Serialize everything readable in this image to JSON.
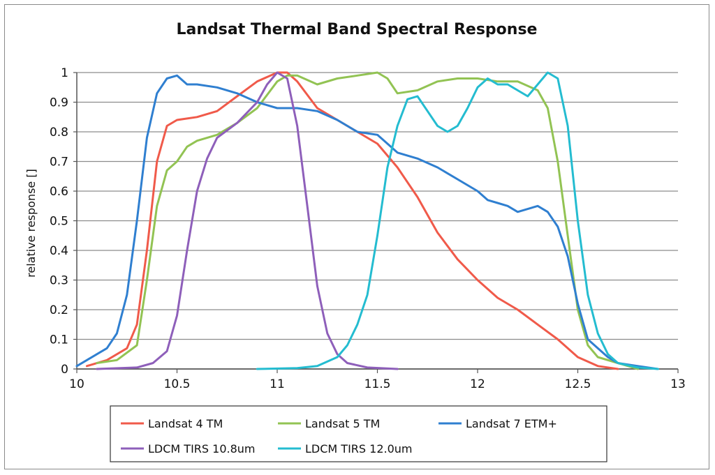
{
  "chart_data": {
    "type": "line",
    "title": "Landsat Thermal Band Spectral Response",
    "xlabel": "",
    "ylabel": "relative response []",
    "xlim": [
      10,
      13
    ],
    "ylim": [
      0,
      1
    ],
    "x_ticks": [
      10,
      10.5,
      11,
      11.5,
      12,
      12.5,
      13
    ],
    "y_ticks": [
      0,
      0.1,
      0.2,
      0.3,
      0.4,
      0.5,
      0.6,
      0.7,
      0.8,
      0.9,
      1
    ],
    "x_tick_labels": [
      "10",
      "10.5",
      "11",
      "11.5",
      "12",
      "12.5",
      "13"
    ],
    "y_tick_labels": [
      "0",
      "0.1",
      "0.2",
      "0.3",
      "0.4",
      "0.5",
      "0.6",
      "0.7",
      "0.8",
      "0.9",
      "1"
    ],
    "grid": "horizontal",
    "legend_position": "bottom",
    "series": [
      {
        "name": "Landsat 4 TM",
        "color": "#f05a4a",
        "points": [
          [
            10.05,
            0.01
          ],
          [
            10.15,
            0.03
          ],
          [
            10.25,
            0.07
          ],
          [
            10.3,
            0.15
          ],
          [
            10.35,
            0.4
          ],
          [
            10.4,
            0.7
          ],
          [
            10.45,
            0.82
          ],
          [
            10.5,
            0.84
          ],
          [
            10.6,
            0.85
          ],
          [
            10.7,
            0.87
          ],
          [
            10.8,
            0.92
          ],
          [
            10.9,
            0.97
          ],
          [
            11.0,
            1.0
          ],
          [
            11.05,
            1.0
          ],
          [
            11.1,
            0.97
          ],
          [
            11.2,
            0.88
          ],
          [
            11.3,
            0.84
          ],
          [
            11.4,
            0.8
          ],
          [
            11.5,
            0.76
          ],
          [
            11.6,
            0.68
          ],
          [
            11.7,
            0.58
          ],
          [
            11.8,
            0.46
          ],
          [
            11.9,
            0.37
          ],
          [
            12.0,
            0.3
          ],
          [
            12.1,
            0.24
          ],
          [
            12.2,
            0.2
          ],
          [
            12.3,
            0.15
          ],
          [
            12.4,
            0.1
          ],
          [
            12.5,
            0.04
          ],
          [
            12.6,
            0.01
          ],
          [
            12.7,
            0.0
          ]
        ]
      },
      {
        "name": "Landsat 5 TM",
        "color": "#92c353",
        "points": [
          [
            10.1,
            0.02
          ],
          [
            10.2,
            0.03
          ],
          [
            10.3,
            0.08
          ],
          [
            10.35,
            0.3
          ],
          [
            10.4,
            0.55
          ],
          [
            10.45,
            0.67
          ],
          [
            10.5,
            0.7
          ],
          [
            10.55,
            0.75
          ],
          [
            10.6,
            0.77
          ],
          [
            10.7,
            0.79
          ],
          [
            10.8,
            0.83
          ],
          [
            10.9,
            0.88
          ],
          [
            11.0,
            0.97
          ],
          [
            11.05,
            0.99
          ],
          [
            11.1,
            0.99
          ],
          [
            11.2,
            0.96
          ],
          [
            11.3,
            0.98
          ],
          [
            11.4,
            0.99
          ],
          [
            11.5,
            1.0
          ],
          [
            11.55,
            0.98
          ],
          [
            11.6,
            0.93
          ],
          [
            11.7,
            0.94
          ],
          [
            11.8,
            0.97
          ],
          [
            11.9,
            0.98
          ],
          [
            12.0,
            0.98
          ],
          [
            12.1,
            0.97
          ],
          [
            12.2,
            0.97
          ],
          [
            12.3,
            0.94
          ],
          [
            12.35,
            0.88
          ],
          [
            12.4,
            0.7
          ],
          [
            12.45,
            0.45
          ],
          [
            12.5,
            0.2
          ],
          [
            12.55,
            0.08
          ],
          [
            12.6,
            0.04
          ],
          [
            12.7,
            0.02
          ],
          [
            12.8,
            0.0
          ]
        ]
      },
      {
        "name": "Landsat 7 ETM+",
        "color": "#2f7fd0",
        "points": [
          [
            10.0,
            0.01
          ],
          [
            10.05,
            0.03
          ],
          [
            10.1,
            0.05
          ],
          [
            10.15,
            0.07
          ],
          [
            10.2,
            0.12
          ],
          [
            10.25,
            0.25
          ],
          [
            10.3,
            0.5
          ],
          [
            10.35,
            0.78
          ],
          [
            10.4,
            0.93
          ],
          [
            10.45,
            0.98
          ],
          [
            10.5,
            0.99
          ],
          [
            10.55,
            0.96
          ],
          [
            10.6,
            0.96
          ],
          [
            10.7,
            0.95
          ],
          [
            10.8,
            0.93
          ],
          [
            10.9,
            0.9
          ],
          [
            11.0,
            0.88
          ],
          [
            11.1,
            0.88
          ],
          [
            11.2,
            0.87
          ],
          [
            11.3,
            0.84
          ],
          [
            11.4,
            0.8
          ],
          [
            11.5,
            0.79
          ],
          [
            11.55,
            0.76
          ],
          [
            11.6,
            0.73
          ],
          [
            11.7,
            0.71
          ],
          [
            11.8,
            0.68
          ],
          [
            11.9,
            0.64
          ],
          [
            12.0,
            0.6
          ],
          [
            12.05,
            0.57
          ],
          [
            12.1,
            0.56
          ],
          [
            12.15,
            0.55
          ],
          [
            12.2,
            0.53
          ],
          [
            12.3,
            0.55
          ],
          [
            12.35,
            0.53
          ],
          [
            12.4,
            0.48
          ],
          [
            12.45,
            0.38
          ],
          [
            12.5,
            0.22
          ],
          [
            12.55,
            0.1
          ],
          [
            12.6,
            0.07
          ],
          [
            12.65,
            0.04
          ],
          [
            12.7,
            0.02
          ],
          [
            12.8,
            0.01
          ],
          [
            12.9,
            0.0
          ]
        ]
      },
      {
        "name": "LDCM TIRS 10.8um",
        "color": "#8e5fba",
        "points": [
          [
            10.1,
            0.0
          ],
          [
            10.3,
            0.005
          ],
          [
            10.38,
            0.02
          ],
          [
            10.45,
            0.06
          ],
          [
            10.5,
            0.18
          ],
          [
            10.55,
            0.4
          ],
          [
            10.6,
            0.6
          ],
          [
            10.65,
            0.71
          ],
          [
            10.7,
            0.78
          ],
          [
            10.8,
            0.83
          ],
          [
            10.9,
            0.9
          ],
          [
            10.95,
            0.96
          ],
          [
            11.0,
            1.0
          ],
          [
            11.05,
            0.98
          ],
          [
            11.1,
            0.82
          ],
          [
            11.15,
            0.55
          ],
          [
            11.2,
            0.28
          ],
          [
            11.25,
            0.12
          ],
          [
            11.3,
            0.05
          ],
          [
            11.35,
            0.02
          ],
          [
            11.45,
            0.005
          ],
          [
            11.6,
            0.0
          ]
        ]
      },
      {
        "name": "LDCM TIRS 12.0um",
        "color": "#24bcd0",
        "points": [
          [
            10.9,
            0.0
          ],
          [
            11.1,
            0.003
          ],
          [
            11.2,
            0.01
          ],
          [
            11.3,
            0.04
          ],
          [
            11.35,
            0.08
          ],
          [
            11.4,
            0.15
          ],
          [
            11.45,
            0.25
          ],
          [
            11.5,
            0.45
          ],
          [
            11.55,
            0.68
          ],
          [
            11.6,
            0.82
          ],
          [
            11.65,
            0.91
          ],
          [
            11.7,
            0.92
          ],
          [
            11.75,
            0.87
          ],
          [
            11.8,
            0.82
          ],
          [
            11.85,
            0.8
          ],
          [
            11.9,
            0.82
          ],
          [
            11.95,
            0.88
          ],
          [
            12.0,
            0.95
          ],
          [
            12.05,
            0.98
          ],
          [
            12.1,
            0.96
          ],
          [
            12.15,
            0.96
          ],
          [
            12.2,
            0.94
          ],
          [
            12.25,
            0.92
          ],
          [
            12.3,
            0.96
          ],
          [
            12.35,
            1.0
          ],
          [
            12.4,
            0.98
          ],
          [
            12.45,
            0.82
          ],
          [
            12.5,
            0.5
          ],
          [
            12.55,
            0.25
          ],
          [
            12.6,
            0.12
          ],
          [
            12.65,
            0.05
          ],
          [
            12.7,
            0.02
          ],
          [
            12.8,
            0.005
          ],
          [
            12.9,
            0.0
          ]
        ]
      }
    ]
  }
}
